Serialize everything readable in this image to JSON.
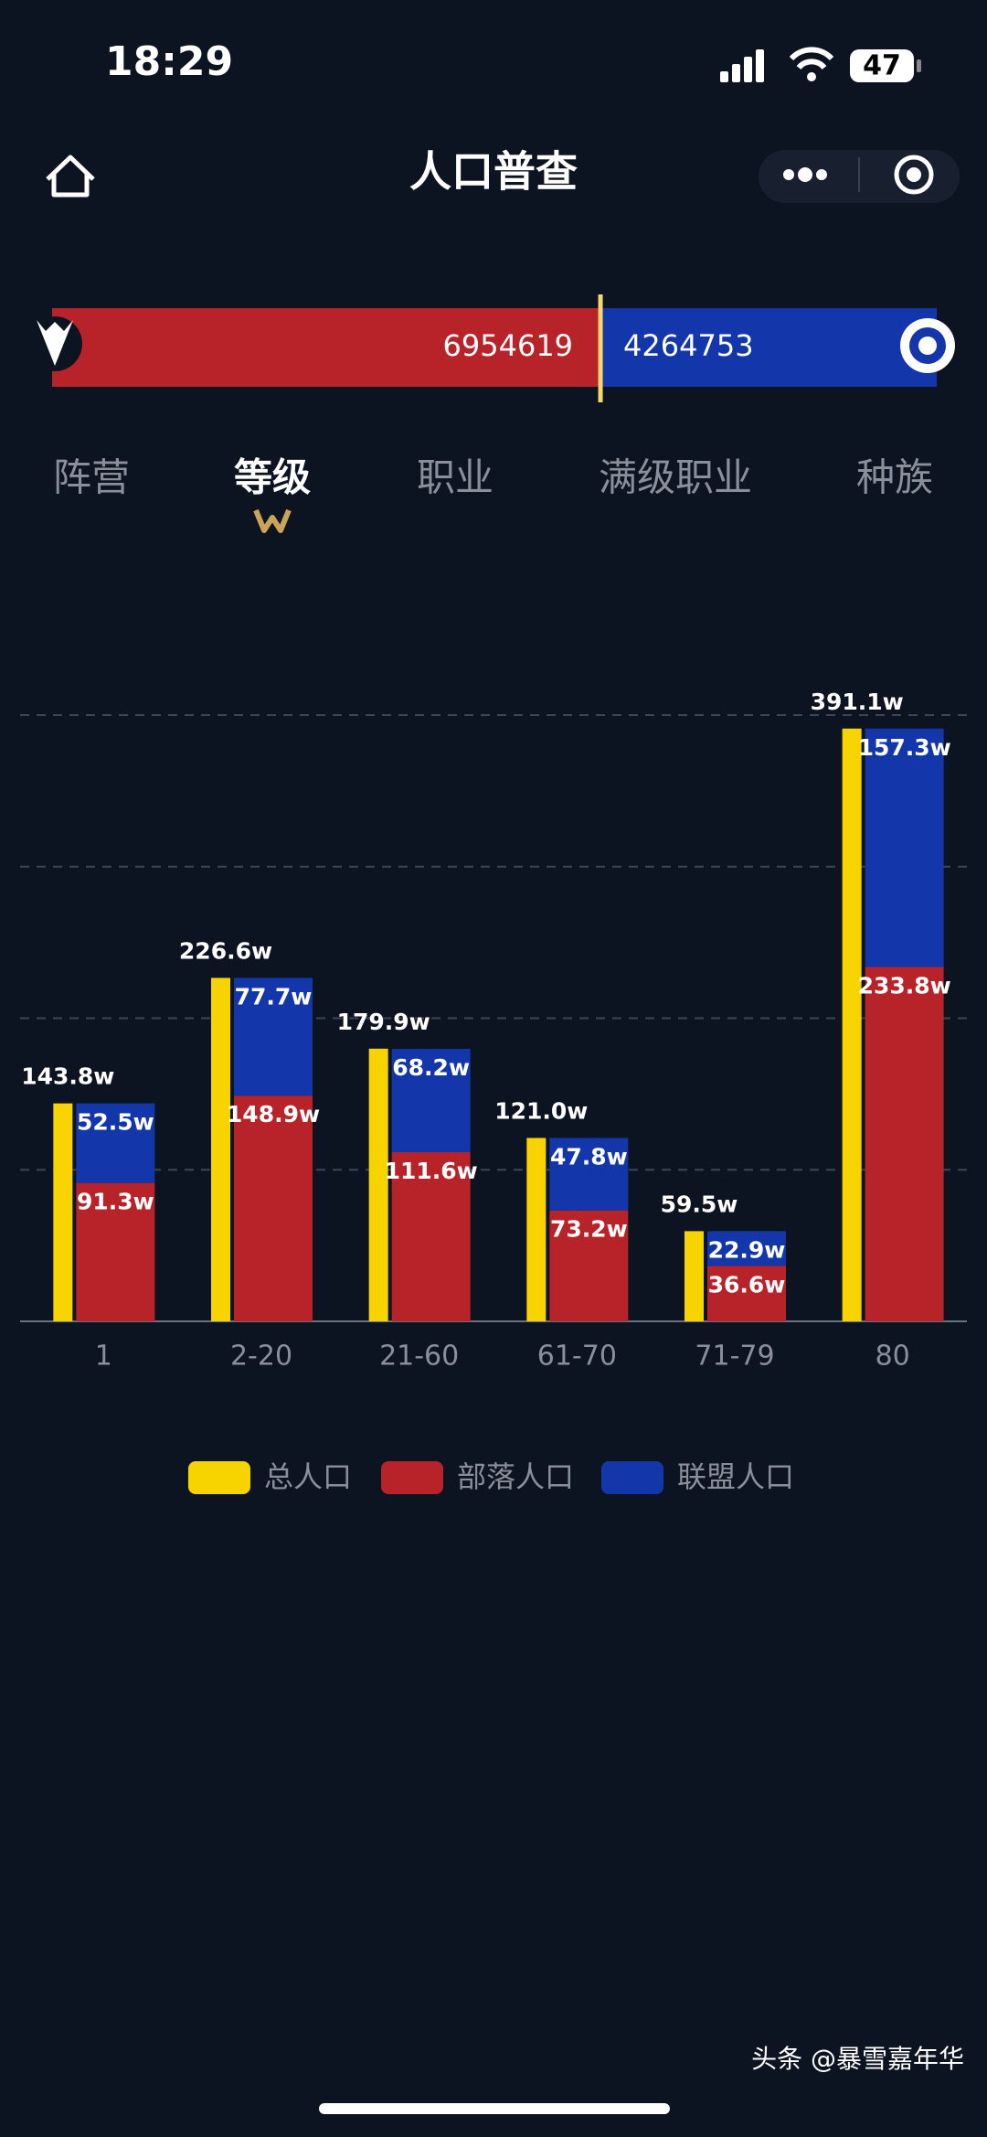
{
  "status_bar": {
    "time": "18:29",
    "battery": "47"
  },
  "nav": {
    "title": "人口普查"
  },
  "faction": {
    "horde": 6954619,
    "alliance": 4264753
  },
  "tabs": {
    "items": [
      "阵营",
      "等级",
      "职业",
      "满级职业",
      "种族"
    ],
    "active": 1
  },
  "chart_data": {
    "type": "bar",
    "categories": [
      "1",
      "2-20",
      "21-60",
      "61-70",
      "71-79",
      "80"
    ],
    "series": [
      {
        "name": "总人口",
        "color": "#f7d300",
        "values": [
          143.8,
          226.6,
          179.9,
          121.0,
          59.5,
          391.1
        ],
        "value_labels": [
          "143.8w",
          "226.6w",
          "179.9w",
          "121.0w",
          "59.5w",
          "391.1w"
        ]
      },
      {
        "name": "部落人口",
        "color": "#b8232a",
        "stack": "faction",
        "values": [
          91.3,
          148.9,
          111.6,
          73.2,
          36.6,
          233.8
        ],
        "value_labels": [
          "91.3w",
          "148.9w",
          "111.6w",
          "73.2w",
          "36.6w",
          "233.8w"
        ]
      },
      {
        "name": "联盟人口",
        "color": "#1337ab",
        "stack": "faction",
        "values": [
          52.5,
          77.7,
          68.2,
          47.8,
          22.9,
          157.3
        ],
        "value_labels": [
          "52.5w",
          "77.7w",
          "68.2w",
          "47.8w",
          "22.9w",
          "157.3w"
        ]
      }
    ],
    "ylim": [
      0,
      400
    ],
    "yticks": [
      0,
      100,
      200,
      300,
      400
    ],
    "grid": true
  },
  "footer": {
    "text": "头条 @暴雪嘉年华"
  }
}
